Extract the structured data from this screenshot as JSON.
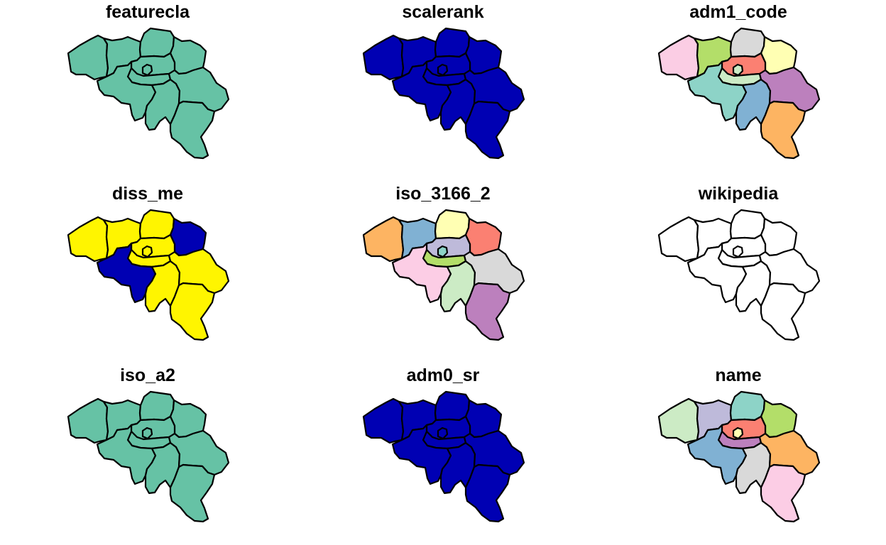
{
  "figure": {
    "panels": [
      {
        "title": "featurecla",
        "fills": [
          "#66C2A5",
          "#66C2A5",
          "#66C2A5",
          "#66C2A5",
          "#66C2A5",
          "#66C2A5",
          "#66C2A5",
          "#66C2A5",
          "#66C2A5",
          "#66C2A5",
          "#66C2A5"
        ]
      },
      {
        "title": "scalerank",
        "fills": [
          "#0000B3",
          "#0000B3",
          "#0000B3",
          "#0000B3",
          "#0000B3",
          "#0000B3",
          "#0000B3",
          "#0000B3",
          "#0000B3",
          "#0000B3",
          "#0000B3"
        ]
      },
      {
        "title": "adm1_code",
        "fills": [
          "#FBCDE4",
          "#B3DE69",
          "#D9D9D9",
          "#FFFFB3",
          "#FB8072",
          "#CCEBC5",
          "#8DD3C7",
          "#80B1D3",
          "#BC80BD",
          "#FDB462",
          "#CCEBC5"
        ]
      },
      {
        "title": "diss_me",
        "fills": [
          "#FFF500",
          "#FFF500",
          "#FFF500",
          "#0000B3",
          "#FFF500",
          "#FFF500",
          "#0000B3",
          "#FFF500",
          "#FFF500",
          "#FFF500",
          "#FFF500"
        ]
      },
      {
        "title": "iso_3166_2",
        "fills": [
          "#FDB462",
          "#80B1D3",
          "#FFFFB3",
          "#FB8072",
          "#BEBADA",
          "#B3DE69",
          "#FCCDE5",
          "#CCEBC5",
          "#D9D9D9",
          "#BC80BD",
          "#8DD3C7"
        ]
      },
      {
        "title": "wikipedia",
        "fills": [
          "#FFFFFF",
          "#FFFFFF",
          "#FFFFFF",
          "#FFFFFF",
          "#FFFFFF",
          "#FFFFFF",
          "#FFFFFF",
          "#FFFFFF",
          "#FFFFFF",
          "#FFFFFF",
          "#FFFFFF"
        ]
      },
      {
        "title": "iso_a2",
        "fills": [
          "#66C2A5",
          "#66C2A5",
          "#66C2A5",
          "#66C2A5",
          "#66C2A5",
          "#66C2A5",
          "#66C2A5",
          "#66C2A5",
          "#66C2A5",
          "#66C2A5",
          "#66C2A5"
        ]
      },
      {
        "title": "adm0_sr",
        "fills": [
          "#0000B3",
          "#0000B3",
          "#0000B3",
          "#0000B3",
          "#0000B3",
          "#0000B3",
          "#0000B3",
          "#0000B3",
          "#0000B3",
          "#0000B3",
          "#0000B3"
        ]
      },
      {
        "title": "name",
        "fills": [
          "#CCEBC5",
          "#BEBADA",
          "#8DD3C7",
          "#B3DE69",
          "#FB8072",
          "#BC80BD",
          "#80B1D3",
          "#D9D9D9",
          "#FDB462",
          "#FCCDE5",
          "#FFFFB3"
        ]
      }
    ]
  }
}
